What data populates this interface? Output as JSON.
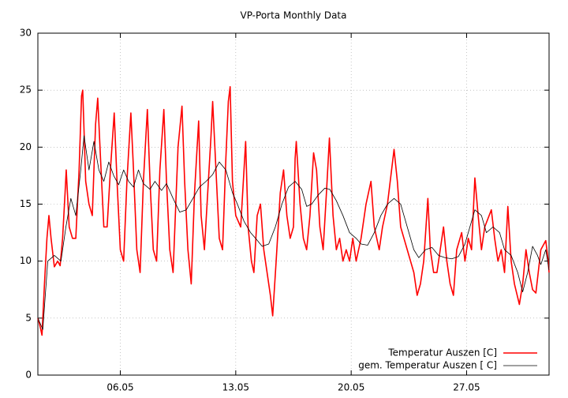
{
  "chart_data": {
    "type": "line",
    "title": "VP-Porta Monthly Data",
    "xlim": [
      1,
      32
    ],
    "ylim": [
      0,
      30
    ],
    "xticks": [
      {
        "value": 6,
        "label": "06.05"
      },
      {
        "value": 13,
        "label": "13.05"
      },
      {
        "value": 20,
        "label": "20.05"
      },
      {
        "value": 27,
        "label": "27.05"
      }
    ],
    "yticks": [
      0,
      5,
      10,
      15,
      20,
      25,
      30
    ],
    "grid": true,
    "legend": "lower right",
    "series": [
      {
        "name": "Temperatur Auszen [C]",
        "color": "#ff0000",
        "x": [
          1.0,
          1.1,
          1.25,
          1.4,
          1.55,
          1.67,
          1.8,
          2.0,
          2.2,
          2.35,
          2.5,
          2.65,
          2.72,
          2.9,
          3.1,
          3.3,
          3.5,
          3.65,
          3.72,
          3.9,
          4.1,
          4.3,
          4.5,
          4.63,
          4.8,
          5.0,
          5.2,
          5.4,
          5.63,
          5.8,
          6.0,
          6.2,
          6.4,
          6.64,
          6.8,
          7.0,
          7.2,
          7.4,
          7.64,
          7.8,
          8.0,
          8.2,
          8.4,
          8.64,
          8.8,
          9.0,
          9.2,
          9.5,
          9.74,
          9.9,
          10.1,
          10.3,
          10.5,
          10.75,
          10.9,
          11.1,
          11.3,
          11.5,
          11.6,
          11.8,
          12.0,
          12.2,
          12.4,
          12.55,
          12.66,
          12.8,
          13.0,
          13.3,
          13.6,
          13.75,
          13.95,
          14.1,
          14.3,
          14.5,
          14.7,
          14.9,
          15.1,
          15.24,
          15.45,
          15.7,
          15.9,
          16.1,
          16.3,
          16.5,
          16.6,
          16.67,
          16.9,
          17.1,
          17.3,
          17.5,
          17.72,
          17.9,
          18.1,
          18.3,
          18.5,
          18.68,
          18.9,
          19.1,
          19.3,
          19.5,
          19.7,
          19.9,
          20.1,
          20.3,
          20.6,
          20.9,
          21.2,
          21.4,
          21.7,
          21.9,
          22.2,
          22.6,
          22.8,
          23.0,
          23.2,
          23.4,
          23.6,
          23.8,
          24.0,
          24.2,
          24.4,
          24.65,
          24.8,
          25.0,
          25.2,
          25.4,
          25.6,
          25.8,
          26.0,
          26.2,
          26.4,
          26.7,
          26.9,
          27.1,
          27.3,
          27.5,
          27.7,
          27.9,
          28.1,
          28.5,
          28.7,
          28.9,
          29.1,
          29.3,
          29.5,
          29.7,
          29.9,
          30.2,
          30.4,
          30.6,
          30.8,
          31.0,
          31.2,
          31.5,
          31.8,
          31.95,
          32
        ],
        "values": [
          5,
          4.5,
          3.5,
          8,
          12,
          14,
          12,
          9.5,
          10,
          9.6,
          12,
          16,
          18,
          13,
          12,
          12,
          18,
          24.5,
          25,
          17,
          15,
          14,
          22,
          24.3,
          19,
          13,
          13,
          18,
          23,
          17,
          11,
          10,
          17,
          23,
          18,
          11,
          9,
          17,
          23.3,
          17,
          11,
          10,
          18,
          23.3,
          17,
          11,
          9,
          20,
          23.6,
          17,
          11,
          8,
          16,
          22.3,
          14,
          11,
          16,
          21,
          24,
          18,
          12,
          11,
          19,
          24,
          25.3,
          17,
          14,
          13,
          20.5,
          13,
          10,
          9,
          14,
          15,
          11,
          9,
          7,
          5.2,
          10,
          16,
          18,
          14,
          12,
          13,
          19,
          20.5,
          15,
          12,
          11,
          14,
          19.5,
          18,
          13,
          11,
          16,
          20.8,
          14,
          11,
          12,
          10,
          11,
          10,
          12,
          10,
          12,
          15,
          17,
          13,
          11,
          13,
          15,
          19.8,
          17,
          13,
          12,
          11,
          10,
          9,
          7,
          8,
          10,
          15.5,
          11,
          9,
          9,
          11,
          13,
          10,
          8,
          7,
          11,
          12.5,
          10,
          12,
          11,
          17.3,
          14,
          11,
          13,
          14.5,
          12,
          10,
          11,
          9,
          14.8,
          10,
          8,
          6.2,
          8,
          11,
          9,
          7.5,
          7.2,
          11,
          11.8,
          10,
          9
        ]
      },
      {
        "name": "gem. Temperatur Auszen [ C]",
        "color": "#000000",
        "x": [
          1.0,
          1.3,
          1.6,
          2.0,
          2.4,
          2.7,
          3.0,
          3.3,
          3.6,
          3.8,
          4.1,
          4.4,
          4.7,
          5.0,
          5.3,
          5.6,
          5.9,
          6.2,
          6.5,
          6.8,
          7.1,
          7.4,
          7.8,
          8.1,
          8.5,
          8.8,
          9.2,
          9.6,
          10.0,
          10.4,
          10.8,
          11.2,
          11.6,
          12.0,
          12.4,
          12.8,
          13.1,
          13.5,
          13.9,
          14.2,
          14.6,
          15.0,
          15.4,
          15.8,
          16.2,
          16.6,
          17.0,
          17.3,
          17.6,
          18.0,
          18.4,
          18.7,
          19.1,
          19.5,
          19.9,
          20.3,
          20.6,
          21.0,
          21.4,
          21.8,
          22.2,
          22.6,
          23.0,
          23.4,
          23.8,
          24.1,
          24.5,
          24.9,
          25.3,
          25.7,
          26.1,
          26.5,
          26.9,
          27.2,
          27.5,
          27.9,
          28.2,
          28.6,
          29.0,
          29.3,
          29.7,
          30.1,
          30.4,
          30.7,
          31.0,
          31.3,
          31.5,
          31.8,
          32
        ],
        "values": [
          5,
          4,
          10,
          10.5,
          10,
          13,
          15.5,
          14,
          18,
          21,
          18,
          20.5,
          18,
          17,
          18.7,
          17.5,
          16.7,
          18,
          17,
          16.5,
          18,
          16.8,
          16.3,
          17,
          16.2,
          16.8,
          15.5,
          14.3,
          14.5,
          15.5,
          16.5,
          17,
          17.6,
          18.7,
          18,
          16,
          15,
          13.5,
          12.5,
          12,
          11.3,
          11.5,
          13,
          15,
          16.5,
          17,
          16.3,
          14.8,
          15,
          15.8,
          16.4,
          16.3,
          15.3,
          14,
          12.5,
          12,
          11.5,
          11.4,
          12.5,
          14,
          15,
          15.5,
          15,
          13,
          11,
          10.3,
          11,
          11.2,
          10.5,
          10.3,
          10.2,
          10.4,
          11.5,
          13,
          14.5,
          14,
          12.5,
          13,
          12.5,
          11,
          10.5,
          9,
          7.3,
          9,
          11.3,
          10.5,
          9.7,
          11,
          9.2
        ]
      }
    ]
  }
}
